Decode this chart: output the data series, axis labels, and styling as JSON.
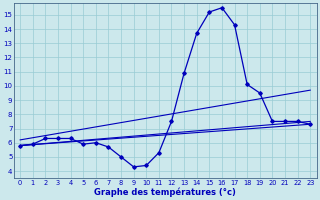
{
  "title": "Graphe des températures (°c)",
  "bg_color": "#cce8ec",
  "grid_color": "#99ccd4",
  "line_color": "#0000bb",
  "xlim": [
    -0.5,
    23.5
  ],
  "ylim": [
    3.5,
    15.8
  ],
  "yticks": [
    4,
    5,
    6,
    7,
    8,
    9,
    10,
    11,
    12,
    13,
    14,
    15
  ],
  "xticks": [
    0,
    1,
    2,
    3,
    4,
    5,
    6,
    7,
    8,
    9,
    10,
    11,
    12,
    13,
    14,
    15,
    16,
    17,
    18,
    19,
    20,
    21,
    22,
    23
  ],
  "temp_curve": [
    5.8,
    5.9,
    6.3,
    6.3,
    6.3,
    5.9,
    6.0,
    5.7,
    5.0,
    4.3,
    4.4,
    5.3,
    7.5,
    10.9,
    13.7,
    15.2,
    15.5,
    14.3,
    10.1,
    9.5,
    7.5,
    7.5,
    7.5,
    7.3
  ],
  "line1": [
    [
      0,
      5.8
    ],
    [
      23,
      7.3
    ]
  ],
  "line2": [
    [
      0,
      5.8
    ],
    [
      23,
      7.5
    ]
  ],
  "line3": [
    [
      0,
      6.2
    ],
    [
      23,
      9.7
    ]
  ]
}
